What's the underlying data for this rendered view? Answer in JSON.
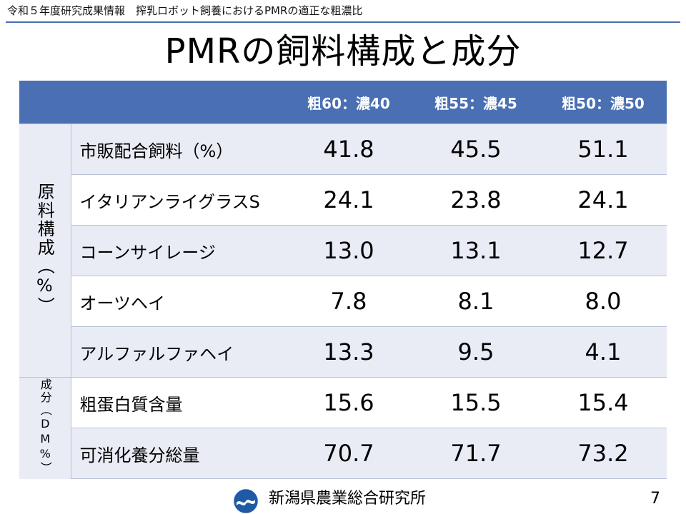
{
  "header": {
    "caption": "令和５年度研究成果情報　搾乳ロボット飼養におけるPMRの適正な粗濃比"
  },
  "slide": {
    "title": "PMRの飼料構成と成分"
  },
  "table": {
    "columns": [
      "粗60：濃40",
      "粗55：濃45",
      "粗50：濃50"
    ],
    "groups": [
      {
        "label": "原料構成（%）",
        "rows": [
          {
            "label": "市販配合飼料（%）",
            "values": [
              "41.8",
              "45.5",
              "51.1"
            ]
          },
          {
            "label": "イタリアンライグラスS",
            "values": [
              "24.1",
              "23.8",
              "24.1"
            ]
          },
          {
            "label": "コーンサイレージ",
            "values": [
              "13.0",
              "13.1",
              "12.7"
            ]
          },
          {
            "label": "オーツヘイ",
            "values": [
              "7.8",
              "8.1",
              "8.0"
            ]
          },
          {
            "label": "アルファルファヘイ",
            "values": [
              "13.3",
              "9.5",
              "4.1"
            ]
          }
        ]
      },
      {
        "label": "成分（DM%）",
        "rows": [
          {
            "label": "粗蛋白質含量",
            "values": [
              "15.6",
              "15.5",
              "15.4"
            ]
          },
          {
            "label": "可消化養分総量",
            "values": [
              "70.7",
              "71.7",
              "73.2"
            ]
          }
        ]
      }
    ]
  },
  "footer": {
    "organization": "新潟県農業総合研究所",
    "page_number": "7",
    "logo_icon": "prefecture-emblem-icon"
  },
  "colors": {
    "header_fill": "#4a6fb2",
    "row_shade": "#e9ecf5",
    "logo_blue": "#1f5aa6"
  }
}
